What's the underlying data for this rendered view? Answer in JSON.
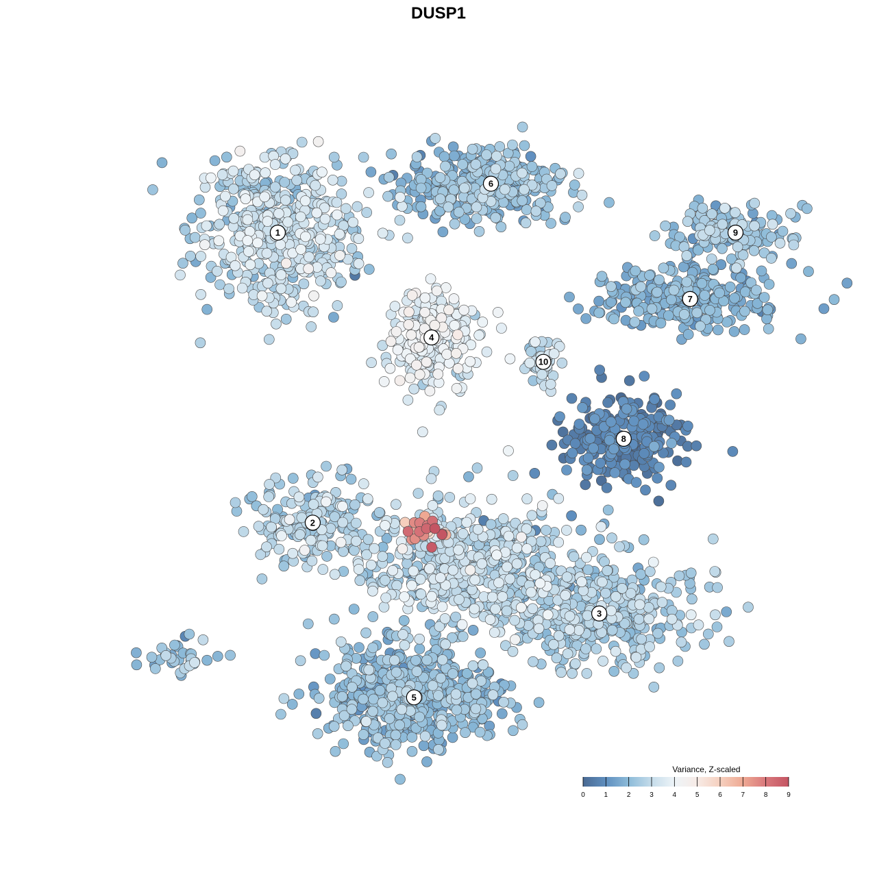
{
  "chart_data": {
    "type": "scatter",
    "title": "DUSP1",
    "xlabel": "",
    "ylabel": "",
    "grid": false,
    "legend": {
      "title": "Variance, Z-scaled",
      "placement": "bottom-right",
      "ticks": [
        "0",
        "1",
        "2",
        "3",
        "4",
        "5",
        "6",
        "7",
        "8",
        "9"
      ],
      "range": [
        0,
        9
      ]
    },
    "colors": {
      "scale": [
        "#4a6a93",
        "#5f8fbf",
        "#8dbbd9",
        "#c5dcea",
        "#eef4f8",
        "#f7ebe6",
        "#f6d0bf",
        "#eea993",
        "#d9787c",
        "#c45563"
      ],
      "point_stroke": "#4a4a4a"
    },
    "clusters": [
      {
        "label": "1",
        "x": -4.6,
        "y": 5.5,
        "sx": 1.5,
        "sy": 1.4,
        "n": 520,
        "value": 2.8,
        "vsd": 0.6
      },
      {
        "label": "6",
        "x": 1.5,
        "y": 6.9,
        "sx": 1.6,
        "sy": 0.7,
        "n": 330,
        "value": 2.0,
        "vsd": 0.5
      },
      {
        "label": "4",
        "x": -0.2,
        "y": 2.5,
        "sx": 0.9,
        "sy": 0.9,
        "n": 260,
        "value": 3.6,
        "vsd": 0.6
      },
      {
        "label": "10",
        "x": 3.0,
        "y": 1.8,
        "sx": 0.35,
        "sy": 0.5,
        "n": 45,
        "value": 3.0,
        "vsd": 0.4
      },
      {
        "label": "9",
        "x": 8.5,
        "y": 5.5,
        "sx": 1.1,
        "sy": 0.5,
        "n": 150,
        "value": 2.2,
        "vsd": 0.5
      },
      {
        "label": "7",
        "x": 7.2,
        "y": 3.6,
        "sx": 1.8,
        "sy": 0.6,
        "n": 260,
        "value": 1.7,
        "vsd": 0.4
      },
      {
        "label": "8",
        "x": 5.3,
        "y": -0.4,
        "sx": 1.1,
        "sy": 0.9,
        "n": 240,
        "value": 0.6,
        "vsd": 0.4
      },
      {
        "label": "2",
        "x": -3.6,
        "y": -2.8,
        "sx": 1.1,
        "sy": 0.8,
        "n": 190,
        "value": 2.6,
        "vsd": 0.5
      },
      {
        "label": "3",
        "x": 4.6,
        "y": -5.4,
        "sx": 1.9,
        "sy": 1.0,
        "n": 400,
        "value": 2.5,
        "vsd": 0.5
      },
      {
        "label": "5",
        "x": -0.7,
        "y": -7.8,
        "sx": 1.7,
        "sy": 1.0,
        "n": 560,
        "value": 2.0,
        "vsd": 0.5
      },
      {
        "label": "",
        "x": 0.8,
        "y": -4.0,
        "sx": 2.0,
        "sy": 1.2,
        "n": 520,
        "value": 2.8,
        "vsd": 0.6
      },
      {
        "label": "",
        "x": -0.4,
        "y": -3.0,
        "sx": 0.5,
        "sy": 0.25,
        "n": 30,
        "value": 7.0,
        "vsd": 1.3
      },
      {
        "label": "",
        "x": -7.5,
        "y": -6.6,
        "sx": 0.9,
        "sy": 0.4,
        "n": 35,
        "value": 2.2,
        "vsd": 0.6
      }
    ],
    "xlim": [
      -10,
      10
    ],
    "ylim": [
      -10,
      10
    ]
  }
}
